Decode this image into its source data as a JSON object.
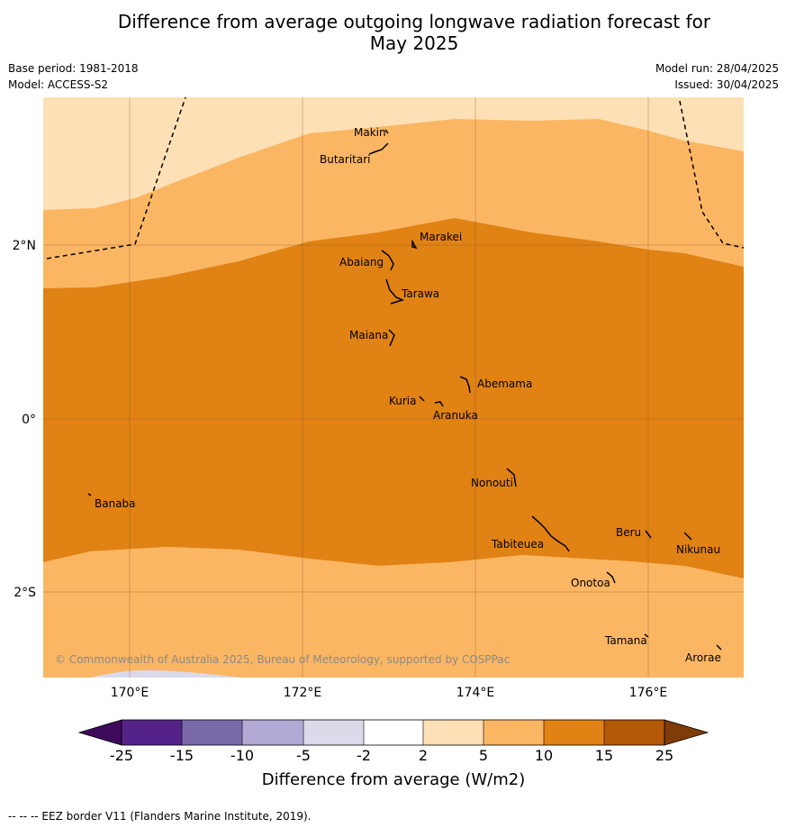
{
  "title_line1": "Difference from average outgoing longwave radiation forecast for",
  "title_line2": "May 2025",
  "base_period": "Base period: 1981-2018",
  "model": "Model: ACCESS-S2",
  "model_run": "Model run: 28/04/2025",
  "issued": "Issued: 30/04/2025",
  "copyright": "© Commonwealth of Australia 2025, Bureau of Meteorology, supported by COSPPac",
  "lon_labels": [
    "170°E",
    "172°E",
    "174°E",
    "176°E"
  ],
  "lat_labels": [
    "2°N",
    "0°",
    "2°S"
  ],
  "places": [
    "Makin",
    "Butaritari",
    "Marakei",
    "Abaiang",
    "Tarawa",
    "Maiana",
    "Abemama",
    "Kuria",
    "Aranuka",
    "Nonouti",
    "Banaba",
    "Beru",
    "Nikunau",
    "Tabiteuea",
    "Onotoa",
    "Tamana",
    "Arorae"
  ],
  "colorbar": {
    "title": "Difference from average (W/m2)",
    "ticks": [
      "-25",
      "-15",
      "-10",
      "-5",
      "-2",
      "2",
      "5",
      "10",
      "15",
      "25"
    ],
    "colors": [
      "#3d0a5c",
      "#55228a",
      "#7b6aaa",
      "#b2a9d4",
      "#dadaea",
      "#ffffff",
      "#fde0b5",
      "#fbb663",
      "#e08214",
      "#b35806",
      "#7f3b08"
    ]
  },
  "legend_note": "-- -- -- EEZ border V11 (Flanders Marine Institute, 2019).",
  "colors": {
    "band_light": "#fde0b5",
    "band_mid": "#fbb663",
    "band_dark": "#e08214",
    "band_violet": "#dadaea"
  }
}
